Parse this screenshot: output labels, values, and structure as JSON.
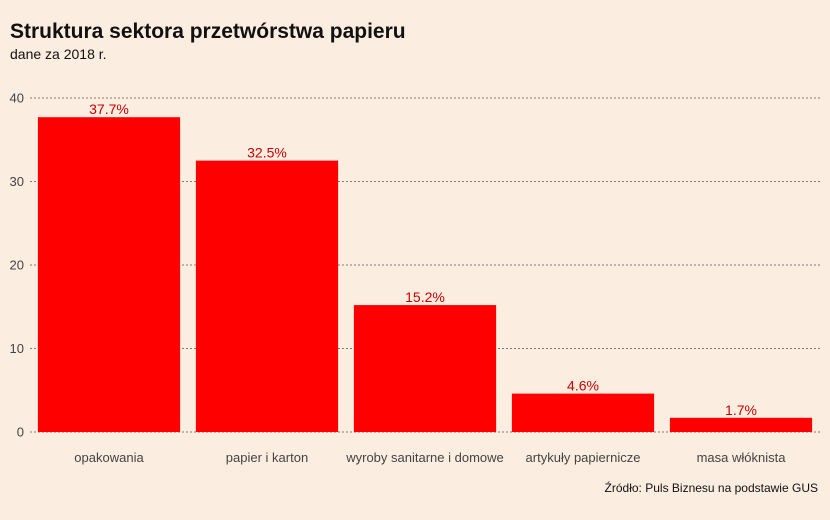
{
  "chart_data": {
    "type": "bar",
    "title": "Struktura sektora przetwórstwa papieru",
    "subtitle": "dane za 2018 r.",
    "categories": [
      "opakowania",
      "papier i karton",
      "wyroby sanitarne i domowe",
      "artykuły papiernicze",
      "masa włóknista"
    ],
    "values": [
      37.7,
      32.5,
      15.2,
      4.6,
      1.7
    ],
    "data_labels": [
      "37.7%",
      "32.5%",
      "15.2%",
      "4.6%",
      "1.7%"
    ],
    "xlabel": "",
    "ylabel": "",
    "ylim": [
      0,
      40
    ],
    "yticks": [
      0,
      10,
      20,
      30,
      40
    ],
    "grid": true,
    "bar_color": "#ff0000",
    "label_color": "#cc0000",
    "background": "#fbede0",
    "source": "Źródło: Puls Biznesu na podstawie GUS"
  }
}
